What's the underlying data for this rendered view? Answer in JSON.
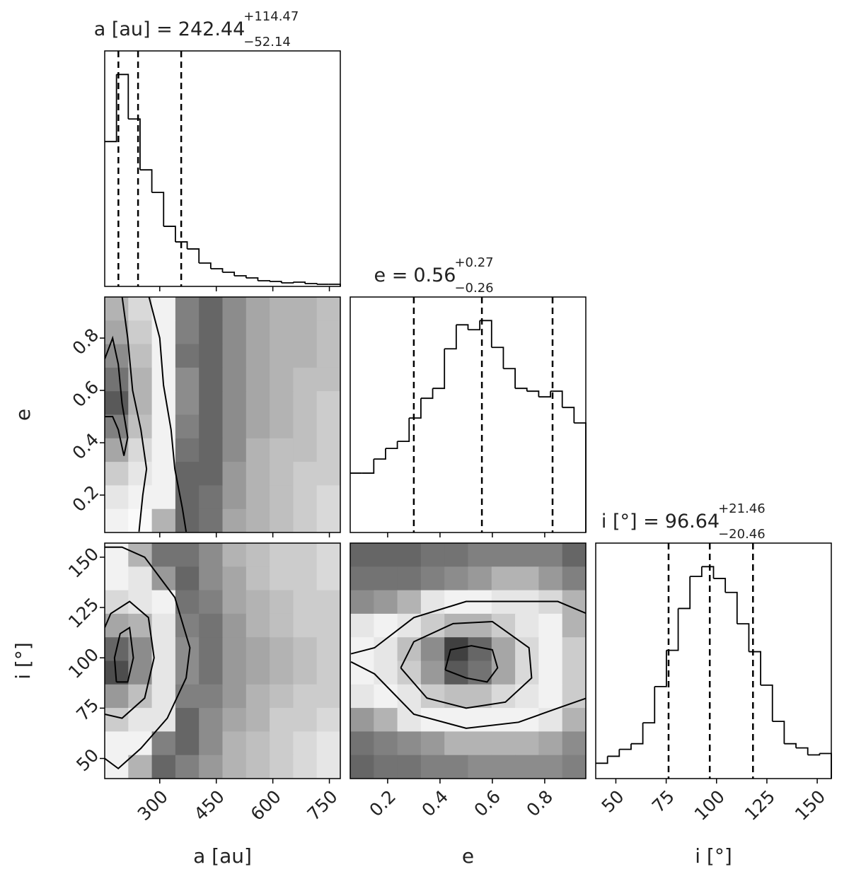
{
  "chart_data": {
    "type": "corner",
    "parameters": [
      {
        "label": "a [au]",
        "lim": [
          154,
          779
        ],
        "ticks": [
          300,
          450,
          600,
          750
        ],
        "title": {
          "name": "a [au] =",
          "median": 242.44,
          "upper": {
            "value": 114.47,
            "label": "+114.47"
          },
          "lower": {
            "value": 52.14,
            "label": "−52.14"
          }
        },
        "bins": [
          154,
          185.25,
          216.5,
          247.75,
          279,
          310.25,
          341.5,
          372.75,
          404,
          435.25,
          466.5,
          497.75,
          529,
          560.25,
          591.5,
          622.75,
          654,
          685.25,
          716.5,
          747.75,
          779
        ],
        "counts": [
          205,
          300,
          237,
          165,
          133,
          85,
          63,
          53,
          33,
          25,
          20,
          15,
          12,
          8,
          7,
          5,
          6,
          4,
          3,
          3
        ]
      },
      {
        "label": "e",
        "lim": [
          0.057,
          0.957
        ],
        "ticks": [
          0.2,
          0.4,
          0.6,
          0.8
        ],
        "title": {
          "name": "e =",
          "median": 0.56,
          "upper": {
            "value": 0.27,
            "label": "+0.27"
          },
          "lower": {
            "value": 0.26,
            "label": "−0.26"
          }
        },
        "bins": [
          0.057,
          0.102,
          0.147,
          0.192,
          0.237,
          0.282,
          0.327,
          0.372,
          0.417,
          0.462,
          0.507,
          0.552,
          0.597,
          0.642,
          0.687,
          0.732,
          0.777,
          0.822,
          0.867,
          0.912,
          0.957
        ],
        "counts": [
          84,
          84,
          104,
          119,
          129,
          162,
          190,
          204,
          260,
          294,
          287,
          300,
          262,
          232,
          204,
          200,
          192,
          200,
          177,
          155
        ]
      },
      {
        "label": "i [°]",
        "lim": [
          40,
          157
        ],
        "ticks": [
          50,
          75,
          100,
          125,
          150
        ],
        "title": {
          "name": "i [°] =",
          "median": 96.64,
          "upper": {
            "value": 21.46,
            "label": "+21.46"
          },
          "lower": {
            "value": 20.46,
            "label": "−20.46"
          }
        },
        "bins": [
          40,
          45.85,
          51.7,
          57.55,
          63.4,
          69.25,
          75.1,
          80.95,
          86.8,
          92.65,
          98.5,
          104.35,
          110.2,
          116.05,
          121.9,
          127.75,
          133.6,
          139.45,
          145.3,
          151.15,
          157
        ],
        "counts": [
          22,
          32,
          42,
          50,
          80,
          132,
          184,
          244,
          290,
          304,
          287,
          267,
          222,
          182,
          134,
          82,
          50,
          44,
          34,
          36
        ]
      }
    ],
    "pairs": [
      {
        "density": [
          [
            0.3,
            0.15,
            0.05,
            0.5,
            0.6,
            0.45,
            0.35,
            0.3,
            0.3,
            0.25
          ],
          [
            0.35,
            0.2,
            0.05,
            0.5,
            0.6,
            0.45,
            0.35,
            0.3,
            0.3,
            0.25
          ],
          [
            0.45,
            0.25,
            0.05,
            0.55,
            0.6,
            0.45,
            0.35,
            0.3,
            0.3,
            0.25
          ],
          [
            0.55,
            0.3,
            0.05,
            0.45,
            0.6,
            0.45,
            0.35,
            0.3,
            0.25,
            0.25
          ],
          [
            0.65,
            0.3,
            0.05,
            0.45,
            0.6,
            0.45,
            0.35,
            0.3,
            0.25,
            0.2
          ],
          [
            0.5,
            0.25,
            0.05,
            0.5,
            0.6,
            0.45,
            0.35,
            0.3,
            0.25,
            0.2
          ],
          [
            0.35,
            0.15,
            0.05,
            0.55,
            0.6,
            0.45,
            0.3,
            0.25,
            0.25,
            0.2
          ],
          [
            0.2,
            0.1,
            0.05,
            0.6,
            0.6,
            0.4,
            0.3,
            0.25,
            0.2,
            0.2
          ],
          [
            0.1,
            0.05,
            0.05,
            0.6,
            0.55,
            0.4,
            0.3,
            0.25,
            0.2,
            0.15
          ],
          [
            0.05,
            0.02,
            0.3,
            0.6,
            0.55,
            0.35,
            0.3,
            0.25,
            0.2,
            0.15
          ]
        ],
        "contours": [
          {
            "x": [
              271,
              300,
              310,
              330,
              340,
              360,
              370
            ],
            "y": [
              0.96,
              0.8,
              0.62,
              0.45,
              0.3,
              0.15,
              0.06
            ]
          },
          {
            "x": [
              200,
              215,
              228,
              250,
              265,
              255,
              245
            ],
            "y": [
              0.96,
              0.8,
              0.6,
              0.45,
              0.3,
              0.2,
              0.06
            ]
          },
          {
            "x": [
              154,
              175,
              190,
              200,
              215,
              205,
              190,
              175,
              154
            ],
            "y": [
              0.72,
              0.8,
              0.7,
              0.55,
              0.42,
              0.35,
              0.45,
              0.5,
              0.5
            ]
          }
        ]
      },
      {
        "density": [
          [
            0.05,
            0.3,
            0.55,
            0.55,
            0.45,
            0.3,
            0.25,
            0.2,
            0.2,
            0.15
          ],
          [
            0.05,
            0.1,
            0.4,
            0.6,
            0.45,
            0.35,
            0.25,
            0.2,
            0.2,
            0.15
          ],
          [
            0.15,
            0.1,
            0.05,
            0.55,
            0.5,
            0.35,
            0.3,
            0.25,
            0.2,
            0.2
          ],
          [
            0.35,
            0.3,
            0.1,
            0.5,
            0.55,
            0.4,
            0.3,
            0.25,
            0.2,
            0.2
          ],
          [
            0.6,
            0.45,
            0.1,
            0.45,
            0.55,
            0.4,
            0.35,
            0.3,
            0.25,
            0.2
          ],
          [
            0.7,
            0.45,
            0.1,
            0.45,
            0.55,
            0.4,
            0.35,
            0.3,
            0.25,
            0.2
          ],
          [
            0.4,
            0.25,
            0.1,
            0.5,
            0.5,
            0.4,
            0.3,
            0.25,
            0.2,
            0.2
          ],
          [
            0.2,
            0.1,
            0.1,
            0.6,
            0.45,
            0.35,
            0.3,
            0.2,
            0.2,
            0.15
          ],
          [
            0.05,
            0.05,
            0.5,
            0.6,
            0.45,
            0.3,
            0.25,
            0.2,
            0.15,
            0.1
          ],
          [
            0.05,
            0.3,
            0.6,
            0.5,
            0.4,
            0.3,
            0.25,
            0.2,
            0.15,
            0.1
          ]
        ],
        "contours": [
          {
            "x": [
              185,
              215,
              230,
              220,
              195,
              180,
              185
            ],
            "y": [
              88,
              88,
              100,
              115,
              112,
              100,
              88
            ]
          },
          {
            "x": [
              154,
              200,
              260,
              285,
              270,
              220,
              170,
              154
            ],
            "y": [
              72,
              70,
              80,
              100,
              120,
              128,
              122,
              115
            ]
          },
          {
            "x": [
              154,
              190,
              250,
              320,
              370,
              380,
              340,
              260,
              200,
              154
            ],
            "y": [
              50,
              45,
              55,
              70,
              90,
              105,
              130,
              150,
              155,
              155
            ]
          }
        ]
      },
      {
        "density": [
          [
            0.6,
            0.6,
            0.6,
            0.55,
            0.55,
            0.5,
            0.5,
            0.5,
            0.5,
            0.6
          ],
          [
            0.55,
            0.55,
            0.55,
            0.5,
            0.45,
            0.4,
            0.3,
            0.3,
            0.4,
            0.5
          ],
          [
            0.45,
            0.4,
            0.3,
            0.1,
            0.05,
            0.05,
            0.1,
            0.1,
            0.15,
            0.3
          ],
          [
            0.1,
            0.05,
            0.1,
            0.2,
            0.3,
            0.3,
            0.2,
            0.1,
            0.05,
            0.3
          ],
          [
            0.05,
            0.1,
            0.25,
            0.45,
            0.75,
            0.6,
            0.35,
            0.15,
            0.05,
            0.2
          ],
          [
            0.05,
            0.1,
            0.2,
            0.4,
            0.65,
            0.55,
            0.35,
            0.15,
            0.05,
            0.2
          ],
          [
            0.1,
            0.05,
            0.1,
            0.2,
            0.25,
            0.25,
            0.15,
            0.1,
            0.05,
            0.2
          ],
          [
            0.4,
            0.3,
            0.1,
            0.05,
            0.05,
            0.05,
            0.05,
            0.05,
            0.1,
            0.3
          ],
          [
            0.55,
            0.5,
            0.45,
            0.4,
            0.3,
            0.3,
            0.3,
            0.3,
            0.35,
            0.45
          ],
          [
            0.6,
            0.55,
            0.55,
            0.5,
            0.5,
            0.45,
            0.45,
            0.45,
            0.45,
            0.5
          ]
        ],
        "contours": [
          {
            "x": [
              0.42,
              0.5,
              0.58,
              0.62,
              0.6,
              0.52,
              0.44,
              0.42
            ],
            "y": [
              94,
              90,
              88,
              95,
              104,
              106,
              104,
              94
            ]
          },
          {
            "x": [
              0.25,
              0.35,
              0.5,
              0.65,
              0.75,
              0.74,
              0.6,
              0.45,
              0.3,
              0.25
            ],
            "y": [
              95,
              80,
              75,
              78,
              90,
              105,
              118,
              117,
              108,
              95
            ]
          },
          {
            "x": [
              0.06,
              0.15,
              0.3,
              0.5,
              0.7,
              0.85,
              0.96,
              0.96,
              0.85,
              0.7,
              0.5,
              0.3,
              0.15,
              0.06
            ],
            "y": [
              98,
              92,
              72,
              65,
              68,
              75,
              80,
              122,
              128,
              128,
              128,
              120,
              105,
              102
            ]
          }
        ]
      }
    ]
  }
}
